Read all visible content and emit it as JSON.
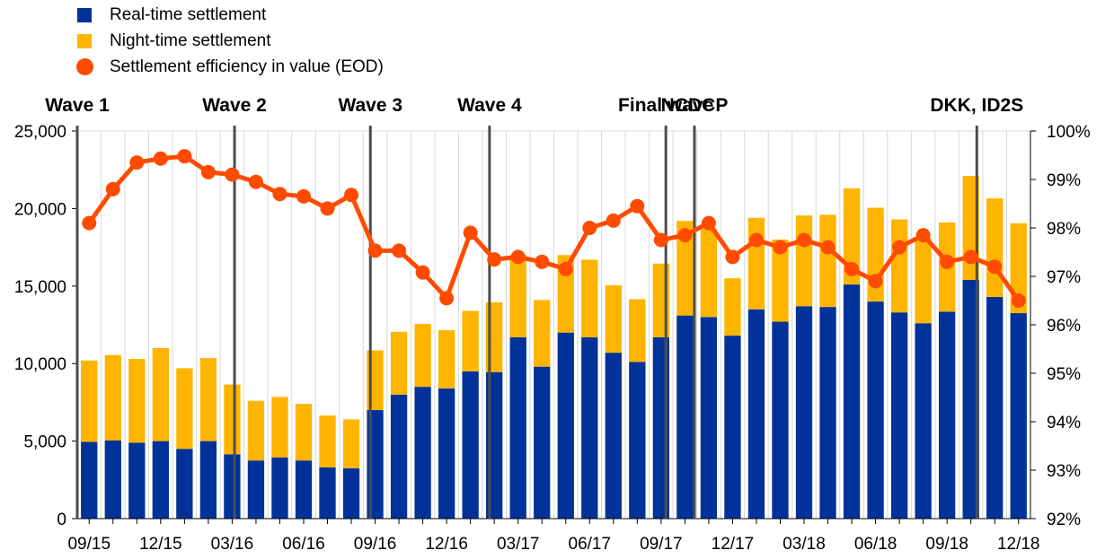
{
  "chart_data": {
    "type": "bar+line",
    "legend": [
      {
        "key": "rt",
        "label": "Real-time settlement",
        "color": "#003299",
        "shape": "square"
      },
      {
        "key": "nt",
        "label": "Night-time settlement",
        "color": "#FFB400",
        "shape": "square"
      },
      {
        "key": "eff",
        "label": "Settlement efficiency in value (EOD)",
        "color": "#FF4B00",
        "shape": "dot"
      }
    ],
    "months": [
      "09/15",
      "10/15",
      "11/15",
      "12/15",
      "01/16",
      "02/16",
      "03/16",
      "04/16",
      "05/16",
      "06/16",
      "07/16",
      "08/16",
      "09/16",
      "10/16",
      "11/16",
      "12/16",
      "01/17",
      "02/17",
      "03/17",
      "04/17",
      "05/17",
      "06/17",
      "07/17",
      "08/17",
      "09/17",
      "10/17",
      "11/17",
      "12/17",
      "01/18",
      "02/18",
      "03/18",
      "04/18",
      "05/18",
      "06/18",
      "07/18",
      "08/18",
      "09/18",
      "10/18",
      "11/18",
      "12/18"
    ],
    "x_tick_labels": [
      "09/15",
      "12/15",
      "03/16",
      "06/16",
      "09/16",
      "12/16",
      "03/17",
      "06/17",
      "09/17",
      "12/17",
      "03/18",
      "06/18",
      "09/18",
      "12/18"
    ],
    "x_tick_every": 3,
    "series": [
      {
        "name": "Real-time settlement",
        "color": "#003299",
        "values": [
          4950,
          5050,
          4900,
          5000,
          4500,
          5000,
          4150,
          3750,
          3950,
          3750,
          3300,
          3250,
          7000,
          8000,
          8500,
          8400,
          9500,
          9450,
          11700,
          9800,
          12000,
          11700,
          10700,
          10100,
          11700,
          13100,
          13000,
          11800,
          13500,
          12700,
          13700,
          13650,
          15100,
          14000,
          13300,
          12600,
          13350,
          15400,
          14300,
          13250
        ]
      },
      {
        "name": "Night-time settlement",
        "color": "#FFB400",
        "values": [
          5250,
          5500,
          5400,
          6000,
          5200,
          5350,
          4500,
          3850,
          3900,
          3650,
          3350,
          3150,
          3850,
          4050,
          4050,
          3750,
          3900,
          4500,
          5300,
          4300,
          5000,
          5000,
          4350,
          4050,
          4750,
          6100,
          5700,
          3700,
          5900,
          5300,
          5850,
          5950,
          6200,
          6050,
          6000,
          5500,
          5750,
          6700,
          6350,
          5800
        ]
      },
      {
        "name": "Settlement efficiency in value (EOD)",
        "color": "#FF4B00",
        "axis": "right",
        "values": [
          98.1,
          98.8,
          99.35,
          99.43,
          99.48,
          99.15,
          99.1,
          98.95,
          98.7,
          98.65,
          98.4,
          98.68,
          97.53,
          97.53,
          97.08,
          96.55,
          97.9,
          97.35,
          97.4,
          97.3,
          97.15,
          98.0,
          98.15,
          98.45,
          97.75,
          97.85,
          98.1,
          97.4,
          97.75,
          97.6,
          97.75,
          97.6,
          97.15,
          96.9,
          97.6,
          97.85,
          97.3,
          97.4,
          97.2,
          96.5
        ]
      }
    ],
    "y_left": {
      "min": 0,
      "max": 25000,
      "step": 5000,
      "tick_labels": [
        "0",
        "5,000",
        "10,000",
        "15,000",
        "20,000",
        "25,000"
      ]
    },
    "y_right": {
      "min": 92,
      "max": 100,
      "step": 1,
      "tick_labels": [
        "92%",
        "93%",
        "94%",
        "95%",
        "96%",
        "97%",
        "98%",
        "99%",
        "100%"
      ]
    },
    "events": [
      {
        "label": "Wave 1",
        "position": 0.0
      },
      {
        "label": "Wave 2",
        "position": 6.6
      },
      {
        "label": "Wave 3",
        "position": 12.3
      },
      {
        "label": "Wave 4",
        "position": 17.3
      },
      {
        "label": "Final wave",
        "position": 24.7
      },
      {
        "label": "NCDCP",
        "position": 25.9
      },
      {
        "label": "DKK, ID2S",
        "position": 37.75
      }
    ],
    "grid": "vertical",
    "legend_placement": "top-left"
  }
}
